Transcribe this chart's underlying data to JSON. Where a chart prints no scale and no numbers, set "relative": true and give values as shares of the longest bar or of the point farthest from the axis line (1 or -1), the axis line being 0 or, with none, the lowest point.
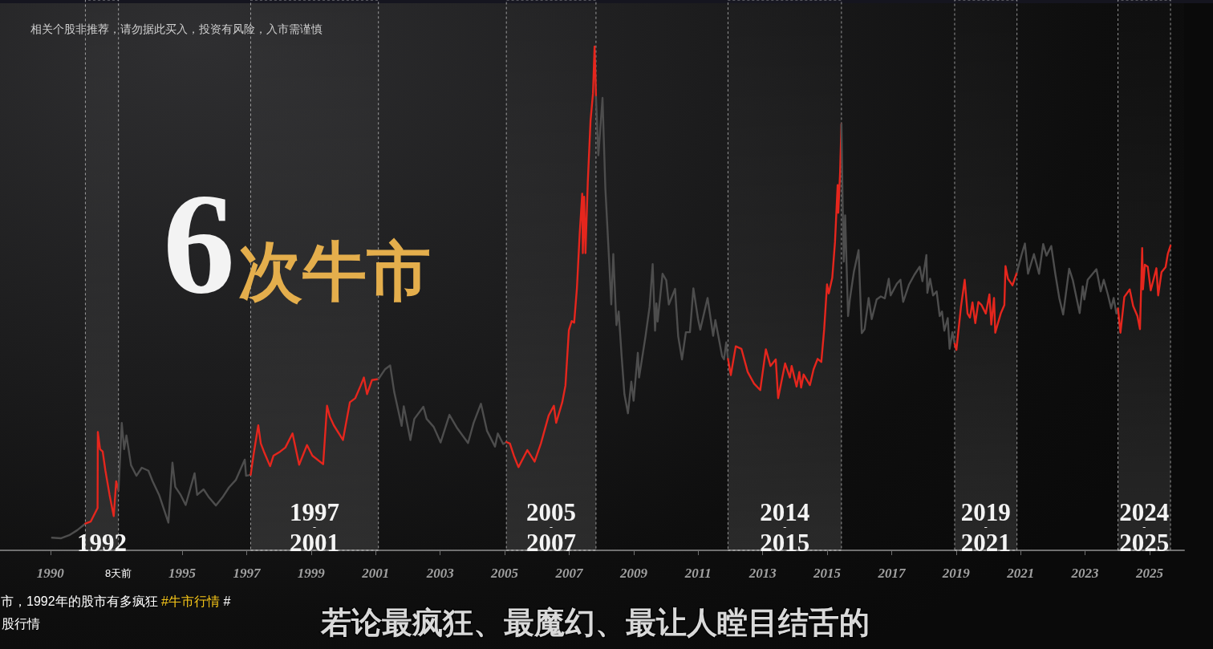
{
  "chart_data": {
    "type": "line",
    "relative": true,
    "title": "6次牛市",
    "annotations": [
      "相关个股非推荐，请勿据此买入，投资有风险，入市需谨慎",
      "8天前",
      "市，1992年的股市有多疯狂 #牛市行情 #",
      "股行情",
      "若论最疯狂、最魔幻、最让人瞠目结舌的"
    ],
    "xlim": [
      "1989-05-09",
      "2026-01-26"
    ],
    "xticks": [
      {
        "value": "1990-12",
        "label": "1990"
      },
      "1995",
      "1997",
      "1999",
      "2001",
      "2003",
      "2005",
      "2007",
      "2009",
      "2011",
      "2013",
      "2015",
      "2017",
      "2019",
      "2021",
      "2023",
      "2025"
    ],
    "marker": "none",
    "line_style": "solid",
    "bands": [
      {
        "axis": "x",
        "from": "1992-01-01",
        "to": "1993-01-10",
        "label": "1992"
      },
      {
        "axis": "x",
        "from": "1997-02-15",
        "to": "2001-02-01",
        "label": "1997\n-\n2001"
      },
      {
        "axis": "x",
        "from": "2005-01-20",
        "to": "2007-11-01",
        "label": "2005\n-\n2007"
      },
      {
        "axis": "x",
        "from": "2011-12-05",
        "to": "2015-06-12",
        "label": "2014\n-\n2015"
      },
      {
        "axis": "x",
        "from": "2018-12-15",
        "to": "2020-11-20",
        "label": "2019\n-\n2021"
      },
      {
        "axis": "x",
        "from": "2024-01-08",
        "to": "2025-08-25",
        "label": "2024\n-\n2025"
      }
    ],
    "series": [
      {
        "color": "#4d4d4d",
        "x": [
          "1990-12-19",
          "1991-04-01",
          "1991-07-01",
          "1991-10-01",
          "1992-01-01"
        ],
        "values": [
          0.025,
          0.024,
          0.03,
          0.04,
          0.053
        ]
      },
      {
        "color": "#e5261d",
        "x": [
          "1992-01-01",
          "1992-03-01",
          "1992-05-18",
          "1992-05-21",
          "1992-06-15",
          "1992-07-15",
          "1992-08-15",
          "1992-10-01",
          "1992-11-17",
          "1992-12-15",
          "1993-01-10"
        ],
        "values": [
          0.053,
          0.057,
          0.084,
          0.235,
          0.201,
          0.196,
          0.158,
          0.11,
          0.068,
          0.137,
          0.119
        ]
      },
      {
        "color": "#4d4d4d",
        "x": [
          "1993-01-10",
          "1993-02-16",
          "1993-03-15",
          "1993-04-10",
          "1993-06-01",
          "1993-08-01",
          "1993-10-01",
          "1993-12-15",
          "1994-02-01",
          "1994-04-15",
          "1994-07-29",
          "1994-09-13",
          "1994-10-15",
          "1994-12-15",
          "1995-02-10",
          "1995-05-22",
          "1995-06-20",
          "1995-09-01",
          "1995-11-01",
          "1996-01-19",
          "1996-04-01",
          "1996-06-15",
          "1996-09-01",
          "1996-12-10",
          "1996-12-25",
          "1997-02-15"
        ],
        "values": [
          0.119,
          0.253,
          0.201,
          0.228,
          0.169,
          0.148,
          0.164,
          0.158,
          0.137,
          0.11,
          0.055,
          0.174,
          0.126,
          0.11,
          0.09,
          0.153,
          0.11,
          0.121,
          0.105,
          0.089,
          0.105,
          0.125,
          0.14,
          0.18,
          0.148,
          0.15
        ]
      },
      {
        "color": "#e5261d",
        "x": [
          "1997-02-15",
          "1997-03-20",
          "1997-05-12",
          "1997-06-10",
          "1997-07-15",
          "1997-09-23",
          "1997-11-01",
          "1998-01-15",
          "1998-03-15",
          "1998-06-04",
          "1998-08-18",
          "1998-11-15",
          "1999-01-15",
          "1999-05-17",
          "1999-06-30",
          "1999-08-01",
          "1999-09-15",
          "1999-12-27",
          "2000-03-15",
          "2000-05-15",
          "2000-07-15",
          "2000-08-20",
          "2000-09-25",
          "2000-11-20",
          "2001-02-01"
        ],
        "values": [
          0.15,
          0.19,
          0.248,
          0.212,
          0.196,
          0.167,
          0.188,
          0.196,
          0.204,
          0.232,
          0.17,
          0.209,
          0.188,
          0.171,
          0.287,
          0.265,
          0.248,
          0.219,
          0.294,
          0.302,
          0.327,
          0.343,
          0.31,
          0.338,
          0.34
        ]
      },
      {
        "color": "#4d4d4d",
        "x": [
          "2001-02-01",
          "2001-04-15",
          "2001-06-14",
          "2001-07-30",
          "2001-10-22",
          "2001-11-15",
          "2002-01-29",
          "2002-03-15",
          "2002-06-25",
          "2002-08-01",
          "2002-10-20",
          "2003-01-06",
          "2003-04-16",
          "2003-07-15",
          "2003-11-13",
          "2004-01-15",
          "2004-04-07",
          "2004-06-15",
          "2004-09-13",
          "2004-10-15",
          "2004-12-15",
          "2005-01-20"
        ],
        "values": [
          0.34,
          0.359,
          0.367,
          0.314,
          0.247,
          0.286,
          0.219,
          0.261,
          0.285,
          0.261,
          0.245,
          0.214,
          0.269,
          0.242,
          0.213,
          0.253,
          0.291,
          0.237,
          0.206,
          0.232,
          0.211,
          0.215
        ]
      },
      {
        "color": "#e5261d",
        "x": [
          "2005-01-20",
          "2005-03-01",
          "2005-04-15",
          "2005-06-06",
          "2005-09-15",
          "2005-12-06",
          "2006-02-15",
          "2006-05-15",
          "2006-07-12",
          "2006-08-07",
          "2006-10-15",
          "2006-11-20",
          "2006-12-29",
          "2007-01-30",
          "2007-02-27",
          "2007-03-30",
          "2007-04-30",
          "2007-05-29",
          "2007-06-05",
          "2007-06-20",
          "2007-07-05",
          "2007-07-31",
          "2007-08-31",
          "2007-09-28",
          "2007-10-16",
          "2007-10-25",
          "2007-11-01"
        ],
        "values": [
          0.215,
          0.212,
          0.188,
          0.165,
          0.199,
          0.176,
          0.212,
          0.268,
          0.287,
          0.253,
          0.294,
          0.327,
          0.437,
          0.455,
          0.452,
          0.52,
          0.627,
          0.708,
          0.59,
          0.702,
          0.59,
          0.73,
          0.852,
          0.907,
          1.0,
          0.947,
          0.9
        ]
      },
      {
        "color": "#4d4d4d",
        "x": [
          "2007-11-01",
          "2007-11-28",
          "2008-01-14",
          "2008-02-15",
          "2008-03-31",
          "2008-04-22",
          "2008-05-15",
          "2008-06-20",
          "2008-07-15",
          "2008-08-18",
          "2008-09-18",
          "2008-10-28",
          "2008-12-05",
          "2008-12-31",
          "2009-02-17",
          "2009-03-03",
          "2009-05-15",
          "2009-06-30",
          "2009-08-04",
          "2009-08-31",
          "2009-09-15",
          "2009-09-29",
          "2009-11-24",
          "2010-01-05",
          "2010-02-03",
          "2010-04-15",
          "2010-05-20",
          "2010-07-02",
          "2010-08-15",
          "2010-09-30",
          "2010-11-08",
          "2010-12-31",
          "2011-01-25",
          "2011-04-18",
          "2011-06-20",
          "2011-07-15",
          "2011-09-30",
          "2011-10-21",
          "2011-11-15",
          "2011-12-05"
        ],
        "values": [
          0.9,
          0.784,
          0.898,
          0.719,
          0.567,
          0.488,
          0.588,
          0.447,
          0.474,
          0.384,
          0.31,
          0.272,
          0.335,
          0.297,
          0.392,
          0.343,
          0.425,
          0.483,
          0.568,
          0.436,
          0.49,
          0.454,
          0.549,
          0.536,
          0.488,
          0.519,
          0.425,
          0.379,
          0.433,
          0.433,
          0.52,
          0.459,
          0.438,
          0.501,
          0.426,
          0.457,
          0.385,
          0.379,
          0.413,
          0.38
        ]
      },
      {
        "color": "#e5261d",
        "x": [
          "2011-12-05",
          "2012-01-06",
          "2012-03-02",
          "2012-05-05",
          "2012-07-15",
          "2012-09-25",
          "2012-12-04",
          "2013-02-06",
          "2013-03-30",
          "2013-05-29",
          "2013-06-25",
          "2013-09-12",
          "2013-11-05",
          "2013-11-25",
          "2014-01-20",
          "2014-02-20",
          "2014-03-12",
          "2014-04-10",
          "2014-06-20",
          "2014-07-31",
          "2014-09-15",
          "2014-10-27",
          "2014-11-28",
          "2014-12-31",
          "2015-01-19",
          "2015-02-28",
          "2015-03-31",
          "2015-04-30",
          "2015-05-07",
          "2015-05-28",
          "2015-06-12"
        ],
        "values": [
          0.38,
          0.348,
          0.405,
          0.4,
          0.354,
          0.331,
          0.318,
          0.399,
          0.366,
          0.379,
          0.302,
          0.371,
          0.343,
          0.366,
          0.325,
          0.354,
          0.323,
          0.349,
          0.328,
          0.359,
          0.38,
          0.374,
          0.438,
          0.528,
          0.51,
          0.541,
          0.612,
          0.725,
          0.67,
          0.751,
          0.846
        ]
      },
      {
        "color": "#4d4d4d",
        "x": [
          "2015-06-12",
          "2015-06-26",
          "2015-07-08",
          "2015-07-24",
          "2015-08-26",
          "2015-09-15",
          "2015-10-30",
          "2015-12-23",
          "2016-01-28",
          "2016-02-29",
          "2016-04-15",
          "2016-05-20",
          "2016-07-15",
          "2016-08-31",
          "2016-10-15",
          "2016-11-29",
          "2016-12-20",
          "2017-02-28",
          "2017-04-10",
          "2017-05-11",
          "2017-07-15",
          "2017-09-15",
          "2017-11-14",
          "2017-12-15",
          "2018-01-29",
          "2018-02-09",
          "2018-03-12",
          "2018-04-15",
          "2018-05-25",
          "2018-06-29",
          "2018-07-25",
          "2018-08-20",
          "2018-09-28",
          "2018-10-19",
          "2018-11-20",
          "2018-12-15"
        ],
        "values": [
          0.846,
          0.684,
          0.573,
          0.665,
          0.465,
          0.498,
          0.552,
          0.596,
          0.431,
          0.439,
          0.501,
          0.459,
          0.498,
          0.504,
          0.5,
          0.539,
          0.506,
          0.529,
          0.537,
          0.493,
          0.527,
          0.547,
          0.563,
          0.534,
          0.586,
          0.511,
          0.539,
          0.506,
          0.514,
          0.465,
          0.474,
          0.436,
          0.461,
          0.4,
          0.433,
          0.41
        ]
      },
      {
        "color": "#e5261d",
        "x": [
          "2018-12-15",
          "2019-01-04",
          "2019-02-25",
          "2019-04-08",
          "2019-05-10",
          "2019-06-06",
          "2019-07-05",
          "2019-08-06",
          "2019-09-10",
          "2019-10-15",
          "2019-12-03",
          "2020-01-13",
          "2020-02-03",
          "2020-03-05",
          "2020-03-19",
          "2020-05-20",
          "2020-06-30",
          "2020-07-13",
          "2020-08-10",
          "2020-09-30",
          "2020-11-20"
        ],
        "values": [
          0.41,
          0.398,
          0.484,
          0.537,
          0.47,
          0.462,
          0.492,
          0.451,
          0.493,
          0.487,
          0.47,
          0.508,
          0.448,
          0.501,
          0.432,
          0.47,
          0.487,
          0.564,
          0.539,
          0.526,
          0.552
        ]
      },
      {
        "color": "#4d4d4d",
        "x": [
          "2020-11-20",
          "2021-01-13",
          "2021-02-18",
          "2021-03-25",
          "2021-05-31",
          "2021-07-28",
          "2021-09-13",
          "2021-10-20",
          "2021-12-13",
          "2022-01-28",
          "2022-03-15",
          "2022-04-27",
          "2022-07-04",
          "2022-08-15",
          "2022-10-31",
          "2022-12-05",
          "2022-12-23",
          "2023-01-30",
          "2023-05-09",
          "2023-06-26",
          "2023-07-31",
          "2023-09-15",
          "2023-10-23",
          "2023-11-20",
          "2023-12-21",
          "2024-01-08"
        ],
        "values": [
          0.552,
          0.588,
          0.609,
          0.549,
          0.588,
          0.549,
          0.608,
          0.585,
          0.604,
          0.549,
          0.5,
          0.468,
          0.559,
          0.536,
          0.471,
          0.524,
          0.498,
          0.537,
          0.558,
          0.514,
          0.537,
          0.508,
          0.48,
          0.501,
          0.47,
          0.48
        ]
      },
      {
        "color": "#e5261d",
        "x": [
          "2024-01-08",
          "2024-02-05",
          "2024-03-20",
          "2024-05-20",
          "2024-06-28",
          "2024-08-15",
          "2024-09-13",
          "2024-09-30",
          "2024-10-08",
          "2024-10-17",
          "2024-11-07",
          "2024-12-10",
          "2025-01-13",
          "2025-03-18",
          "2025-04-07",
          "2025-05-15",
          "2025-06-30",
          "2025-07-25",
          "2025-08-25"
        ],
        "values": [
          0.48,
          0.432,
          0.503,
          0.518,
          0.485,
          0.465,
          0.439,
          0.545,
          0.6,
          0.518,
          0.567,
          0.563,
          0.516,
          0.56,
          0.506,
          0.552,
          0.562,
          0.588,
          0.605
        ]
      }
    ]
  }
}
